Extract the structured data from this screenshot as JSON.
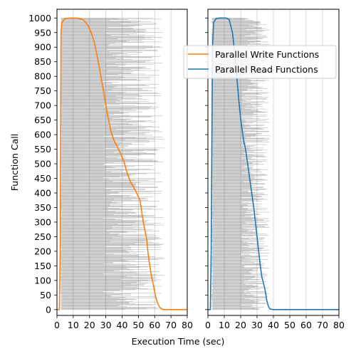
{
  "chart_data": {
    "type": "line",
    "xlabel": "Execution Time (sec)",
    "ylabel": "Function Call",
    "xlim": [
      0,
      80
    ],
    "ylim": [
      -20,
      1030
    ],
    "x_ticks": [
      0,
      10,
      20,
      30,
      40,
      50,
      60,
      70,
      80
    ],
    "y_ticks": [
      0,
      50,
      100,
      150,
      200,
      250,
      300,
      350,
      400,
      450,
      500,
      550,
      600,
      650,
      700,
      750,
      800,
      850,
      900,
      950,
      1000
    ],
    "grid": "vertical",
    "legend_placement": "upper-right",
    "colors": {
      "write": "#ff7f0e",
      "read": "#1f77b4",
      "bars": "#000000"
    },
    "panels": [
      {
        "name": "write",
        "series": [
          {
            "name": "Parallel Write Functions",
            "points": [
              [
                0,
                0
              ],
              [
                1.5,
                0
              ],
              [
                2,
                200
              ],
              [
                2.5,
                950
              ],
              [
                3,
                985
              ],
              [
                5,
                998
              ],
              [
                8,
                1000
              ],
              [
                12,
                1000
              ],
              [
                16,
                995
              ],
              [
                19,
                975
              ],
              [
                21,
                950
              ],
              [
                23,
                915
              ],
              [
                25,
                860
              ],
              [
                27,
                800
              ],
              [
                29,
                735
              ],
              [
                31,
                670
              ],
              [
                33,
                615
              ],
              [
                35,
                580
              ],
              [
                38,
                548
              ],
              [
                41,
                510
              ],
              [
                43,
                470
              ],
              [
                45,
                440
              ],
              [
                48,
                410
              ],
              [
                51,
                375
              ],
              [
                53,
                300
              ],
              [
                55,
                245
              ],
              [
                56,
                190
              ],
              [
                57,
                150
              ],
              [
                58,
                115
              ],
              [
                59,
                90
              ],
              [
                60,
                60
              ],
              [
                61,
                35
              ],
              [
                62,
                20
              ],
              [
                63,
                8
              ],
              [
                65,
                0
              ],
              [
                80,
                0
              ]
            ]
          }
        ],
        "spans": {
          "start_range": [
            2,
            3
          ],
          "end_range": [
            28,
            66
          ]
        }
      },
      {
        "name": "read",
        "series": [
          {
            "name": "Parallel Read Functions",
            "points": [
              [
                0,
                0
              ],
              [
                1.5,
                0
              ],
              [
                2,
                200
              ],
              [
                2.8,
                900
              ],
              [
                3.5,
                985
              ],
              [
                5,
                998
              ],
              [
                7,
                1000
              ],
              [
                11,
                1000
              ],
              [
                13,
                995
              ],
              [
                15,
                950
              ],
              [
                16,
                900
              ],
              [
                17,
                840
              ],
              [
                18,
                775
              ],
              [
                19,
                710
              ],
              [
                20,
                655
              ],
              [
                21,
                610
              ],
              [
                22,
                575
              ],
              [
                23,
                550
              ],
              [
                24,
                510
              ],
              [
                25,
                470
              ],
              [
                26,
                430
              ],
              [
                27,
                390
              ],
              [
                28,
                350
              ],
              [
                29,
                300
              ],
              [
                30,
                250
              ],
              [
                31,
                200
              ],
              [
                32,
                150
              ],
              [
                33,
                110
              ],
              [
                34,
                90
              ],
              [
                35,
                65
              ],
              [
                36,
                30
              ],
              [
                37,
                10
              ],
              [
                38,
                2
              ],
              [
                40,
                0
              ],
              [
                80,
                0
              ]
            ]
          }
        ],
        "spans": {
          "start_range": [
            2,
            3
          ],
          "end_range": [
            20,
            38
          ]
        }
      }
    ]
  }
}
